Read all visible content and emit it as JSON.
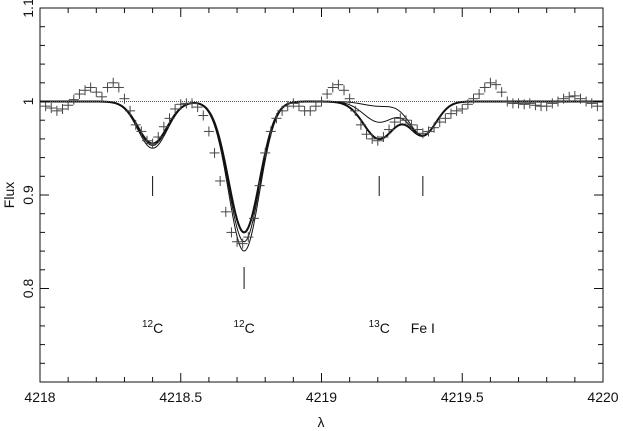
{
  "chart_data": {
    "type": "line",
    "title": "",
    "xlabel": "λ",
    "ylabel": "Flux",
    "xlim": [
      4218,
      4220
    ],
    "ylim": [
      0.7,
      1.1
    ],
    "grid": false,
    "x_ticks": [
      4218,
      4218.5,
      4219,
      4219.5,
      4220
    ],
    "y_ticks": [
      0.8,
      0.9,
      1,
      1.1
    ],
    "x_tick_labels": [
      "4218",
      "4218.5",
      "4219",
      "4219.5",
      "4220"
    ],
    "y_tick_labels": [
      "0.8",
      "0.9",
      "1",
      "1.1"
    ],
    "series": [
      {
        "style": "solid-thin",
        "lines": [
          {
            "center": 4218.4,
            "depth": 0.047,
            "width": 0.052
          },
          {
            "center": 4218.725,
            "depth": 0.16,
            "width": 0.055
          },
          {
            "center": 4219.205,
            "depth": 0.005,
            "width": 0.055
          },
          {
            "center": 4219.36,
            "depth": 0.036,
            "width": 0.048
          }
        ]
      },
      {
        "style": "solid-thin",
        "lines": [
          {
            "center": 4218.4,
            "depth": 0.05,
            "width": 0.052
          },
          {
            "center": 4218.725,
            "depth": 0.15,
            "width": 0.055
          },
          {
            "center": 4219.205,
            "depth": 0.022,
            "width": 0.055
          },
          {
            "center": 4219.36,
            "depth": 0.036,
            "width": 0.048
          }
        ]
      },
      {
        "style": "solid-thick",
        "lines": [
          {
            "center": 4218.4,
            "depth": 0.045,
            "width": 0.052
          },
          {
            "center": 4218.725,
            "depth": 0.14,
            "width": 0.055
          },
          {
            "center": 4219.205,
            "depth": 0.04,
            "width": 0.055
          },
          {
            "center": 4219.36,
            "depth": 0.036,
            "width": 0.048
          }
        ]
      },
      {
        "style": "dotted-continuum",
        "lines": []
      }
    ],
    "observed_points": {
      "marker": "plus",
      "x": [
        4218.02,
        4218.04,
        4218.06,
        4218.08,
        4218.1,
        4218.12,
        4218.14,
        4218.16,
        4218.18,
        4218.2,
        4218.22,
        4218.24,
        4218.26,
        4218.28,
        4218.3,
        4218.32,
        4218.34,
        4218.36,
        4218.38,
        4218.4,
        4218.42,
        4218.44,
        4218.46,
        4218.48,
        4218.5,
        4218.52,
        4218.54,
        4218.56,
        4218.58,
        4218.6,
        4218.62,
        4218.64,
        4218.66,
        4218.68,
        4218.7,
        4218.72,
        4218.74,
        4218.76,
        4218.78,
        4218.8,
        4218.82,
        4218.84,
        4218.86,
        4218.88,
        4218.9,
        4218.92,
        4218.94,
        4218.96,
        4218.98,
        4219.0,
        4219.02,
        4219.04,
        4219.06,
        4219.08,
        4219.1,
        4219.12,
        4219.14,
        4219.16,
        4219.18,
        4219.2,
        4219.22,
        4219.24,
        4219.26,
        4219.28,
        4219.3,
        4219.32,
        4219.34,
        4219.36,
        4219.38,
        4219.4,
        4219.42,
        4219.44,
        4219.46,
        4219.48,
        4219.5,
        4219.52,
        4219.54,
        4219.56,
        4219.58,
        4219.6,
        4219.62,
        4219.64,
        4219.66,
        4219.68,
        4219.7,
        4219.72,
        4219.74,
        4219.76,
        4219.78,
        4219.8,
        4219.82,
        4219.84,
        4219.86,
        4219.88,
        4219.9,
        4219.92,
        4219.94,
        4219.96,
        4219.98
      ],
      "y": [
        0.995,
        0.993,
        0.99,
        0.992,
        0.996,
        1.002,
        1.008,
        1.012,
        1.015,
        1.01,
        1.005,
        1.015,
        1.02,
        1.015,
        1.003,
        0.99,
        0.975,
        0.968,
        0.958,
        0.955,
        0.962,
        0.973,
        0.982,
        0.992,
        0.997,
        0.998,
        0.998,
        0.994,
        0.985,
        0.968,
        0.945,
        0.915,
        0.882,
        0.86,
        0.85,
        0.848,
        0.855,
        0.875,
        0.91,
        0.945,
        0.968,
        0.982,
        0.99,
        0.995,
        0.998,
        0.995,
        0.99,
        0.99,
        0.995,
        1.0,
        1.008,
        1.015,
        1.018,
        1.012,
        1.003,
        0.99,
        0.975,
        0.965,
        0.96,
        0.958,
        0.962,
        0.97,
        0.978,
        0.982,
        0.98,
        0.975,
        0.97,
        0.966,
        0.968,
        0.972,
        0.978,
        0.982,
        0.987,
        0.99,
        0.992,
        0.997,
        1.003,
        1.008,
        1.015,
        1.02,
        1.018,
        1.01,
        1.0,
        0.998,
        0.998,
        0.997,
        0.998,
        0.996,
        0.995,
        0.995,
        0.998,
        1.0,
        1.003,
        1.005,
        1.006,
        1.003,
        1.0,
        0.998,
        0.995
      ]
    },
    "line_markers": [
      {
        "x": 4218.4,
        "label": "C",
        "isotope": "12"
      },
      {
        "x": 4218.725,
        "label": "C",
        "isotope": "12"
      },
      {
        "x": 4219.205,
        "label": "C",
        "isotope": "13"
      },
      {
        "x": 4219.36,
        "label": "Fe I",
        "isotope": ""
      }
    ]
  }
}
